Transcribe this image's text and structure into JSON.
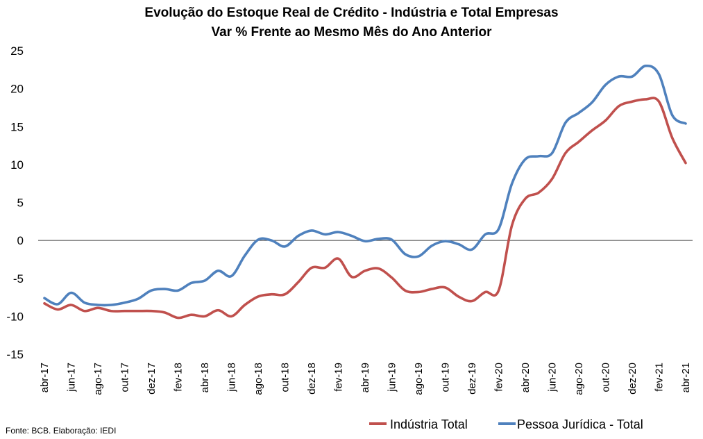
{
  "chart_data": {
    "type": "line",
    "title": "Evolução do Estoque Real de Crédito - Indústria e Total Empresas",
    "subtitle": "Var % Frente ao Mesmo Mês do Ano Anterior",
    "source": "Fonte: BCB. Elaboração: IEDI",
    "ylim": [
      -15,
      25
    ],
    "yticks": [
      -15,
      -10,
      -5,
      0,
      5,
      10,
      15,
      20,
      25
    ],
    "legend_position": "bottom-right",
    "grid": false,
    "x": [
      "abr-17",
      "mai-17",
      "jun-17",
      "jul-17",
      "ago-17",
      "set-17",
      "out-17",
      "nov-17",
      "dez-17",
      "jan-18",
      "fev-18",
      "mar-18",
      "abr-18",
      "mai-18",
      "jun-18",
      "jul-18",
      "ago-18",
      "set-18",
      "out-18",
      "nov-18",
      "dez-18",
      "jan-19",
      "fev-19",
      "mar-19",
      "abr-19",
      "mai-19",
      "jun-19",
      "jul-19",
      "ago-19",
      "set-19",
      "out-19",
      "nov-19",
      "dez-19",
      "jan-20",
      "fev-20",
      "mar-20",
      "abr-20",
      "mai-20",
      "jun-20",
      "jul-20",
      "ago-20",
      "set-20",
      "out-20",
      "nov-20",
      "dez-20",
      "jan-21",
      "fev-21",
      "mar-21",
      "abr-21"
    ],
    "tick_labels": [
      "abr-17",
      "jun-17",
      "ago-17",
      "out-17",
      "dez-17",
      "fev-18",
      "abr-18",
      "jun-18",
      "ago-18",
      "out-18",
      "dez-18",
      "fev-19",
      "abr-19",
      "jun-19",
      "ago-19",
      "out-19",
      "dez-19",
      "fev-20",
      "abr-20",
      "jun-20",
      "ago-20",
      "out-20",
      "dez-20",
      "fev-21",
      "abr-21"
    ],
    "series": [
      {
        "name": "Indústria Total",
        "color": "#C0504D",
        "values": [
          -8.3,
          -9.1,
          -8.5,
          -9.3,
          -8.9,
          -9.3,
          -9.3,
          -9.3,
          -9.3,
          -9.5,
          -10.2,
          -9.8,
          -10.0,
          -9.2,
          -10.0,
          -8.5,
          -7.4,
          -7.1,
          -7.1,
          -5.5,
          -3.6,
          -3.6,
          -2.4,
          -4.8,
          -4.0,
          -3.7,
          -4.9,
          -6.6,
          -6.8,
          -6.4,
          -6.2,
          -7.4,
          -8.0,
          -6.8,
          -6.6,
          2.0,
          5.5,
          6.3,
          8.1,
          11.5,
          13.0,
          14.5,
          15.8,
          17.7,
          18.3,
          18.6,
          18.3,
          13.5,
          10.2
        ]
      },
      {
        "name": "Pessoa Jurídica - Total",
        "color": "#4F81BD",
        "values": [
          -7.6,
          -8.4,
          -6.9,
          -8.2,
          -8.5,
          -8.5,
          -8.2,
          -7.7,
          -6.6,
          -6.4,
          -6.6,
          -5.6,
          -5.3,
          -4.0,
          -4.7,
          -2.0,
          0.1,
          0.0,
          -0.8,
          0.6,
          1.3,
          0.8,
          1.1,
          0.6,
          -0.1,
          0.2,
          0.1,
          -1.8,
          -2.1,
          -0.7,
          -0.1,
          -0.5,
          -1.2,
          0.8,
          1.5,
          7.5,
          10.7,
          11.1,
          11.5,
          15.5,
          16.8,
          18.2,
          20.5,
          21.6,
          21.6,
          23.0,
          21.9,
          16.5,
          15.4
        ]
      }
    ]
  }
}
